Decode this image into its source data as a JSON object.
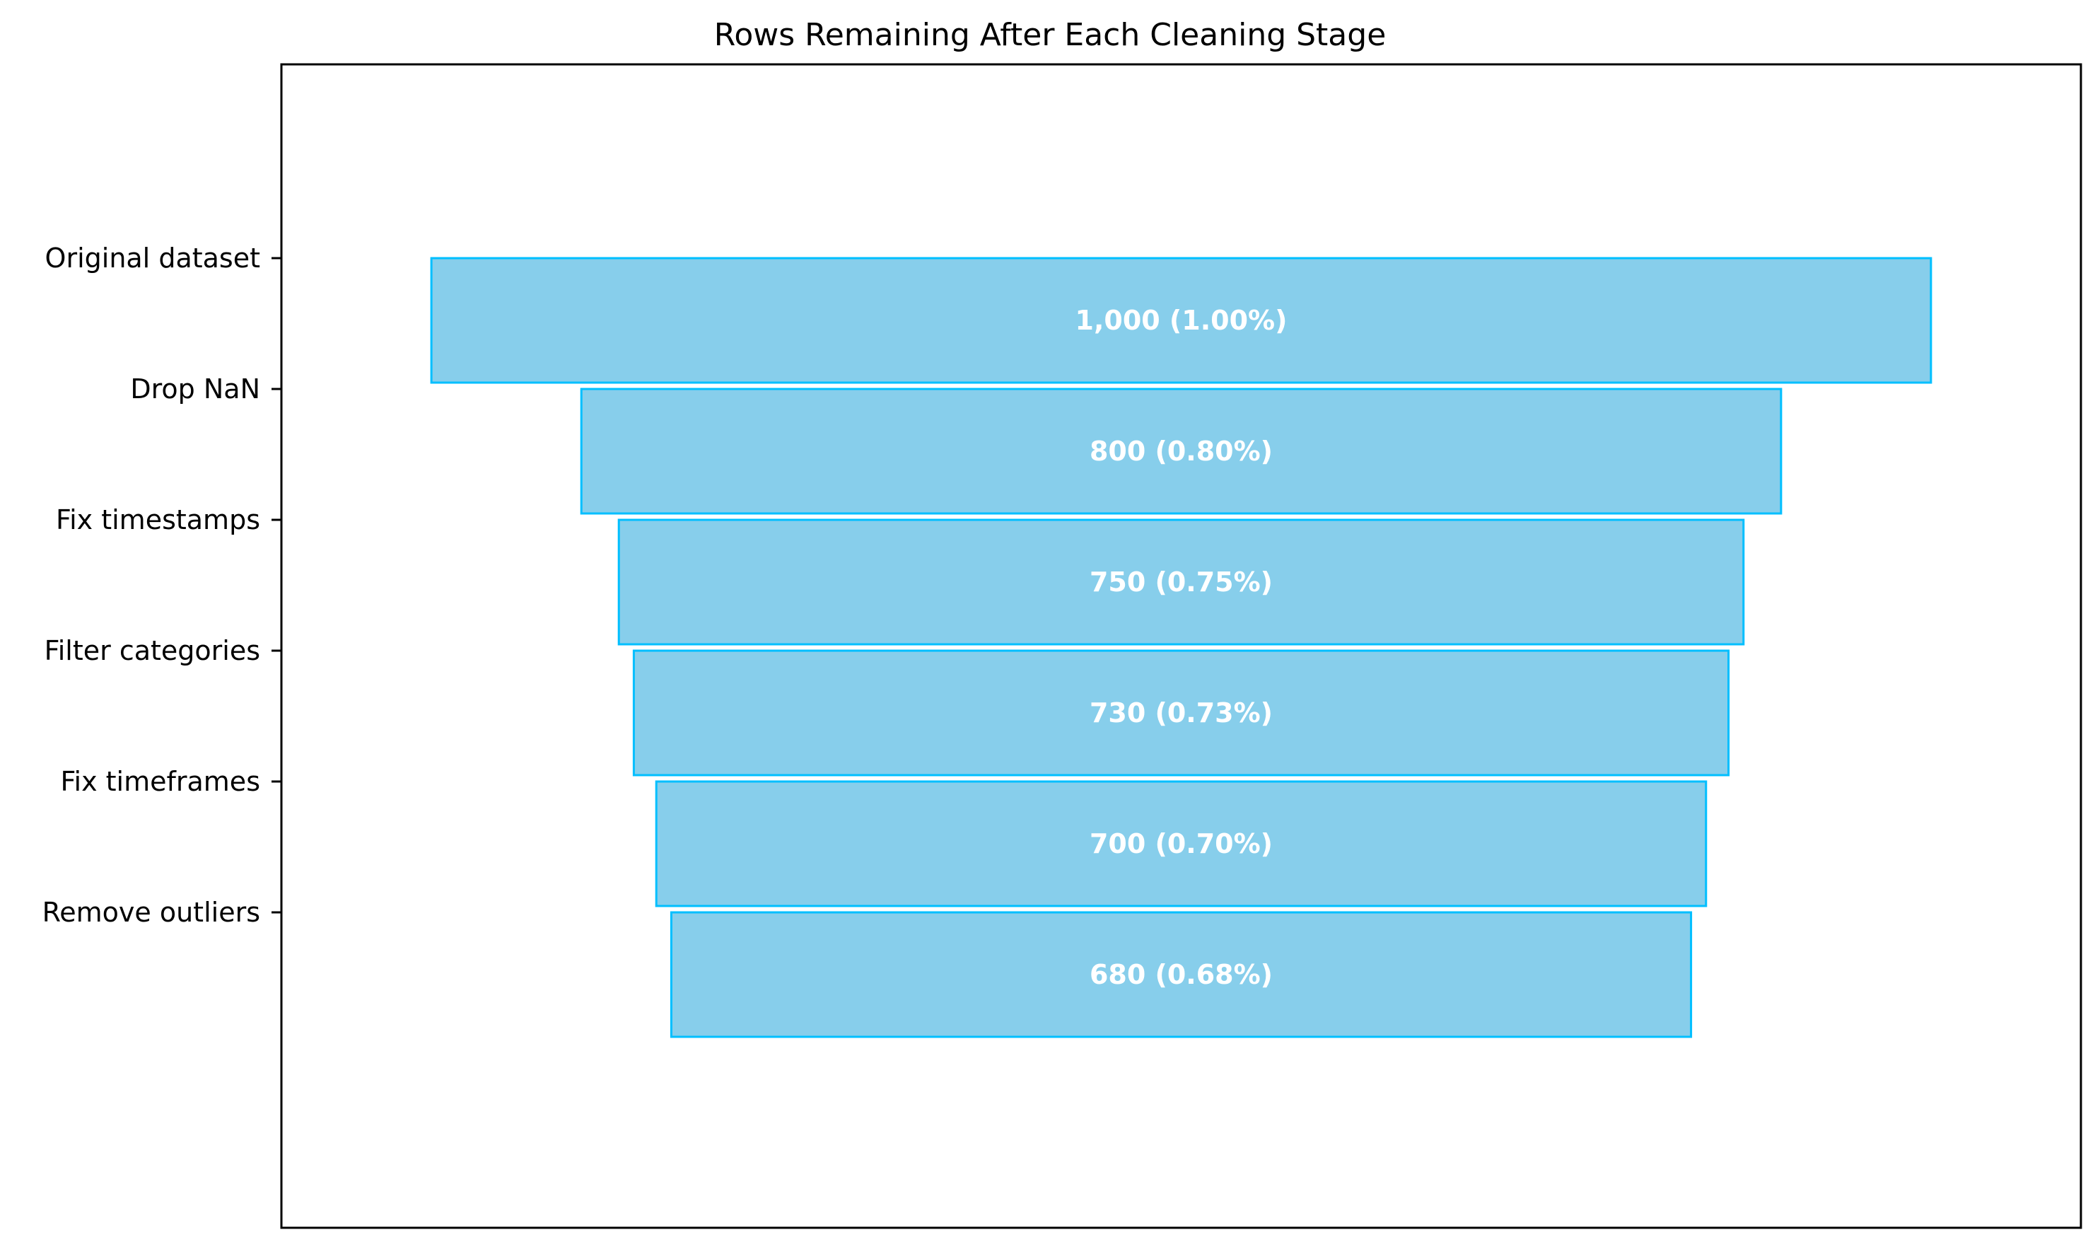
{
  "chart_data": {
    "type": "funnel",
    "title": "Rows Remaining After Each Cleaning Stage",
    "xlabel": "",
    "ylabel": "",
    "categories": [
      "Original dataset",
      "Drop NaN",
      "Fix timestamps",
      "Filter categories",
      "Fix timeframes",
      "Remove outliers"
    ],
    "values": [
      1000,
      800,
      750,
      730,
      700,
      680
    ],
    "bar_labels": [
      "1,000 (1.00%)",
      "800 (0.80%)",
      "750 (0.75%)",
      "730 (0.73%)",
      "700 (0.70%)",
      "680 (0.68%)"
    ],
    "xlim": [
      -600,
      600
    ],
    "colors": {
      "fill": "#87CEEB",
      "edge": "#00BFFF",
      "label": "#FFFFFF"
    },
    "grid": false,
    "legend": "none"
  }
}
